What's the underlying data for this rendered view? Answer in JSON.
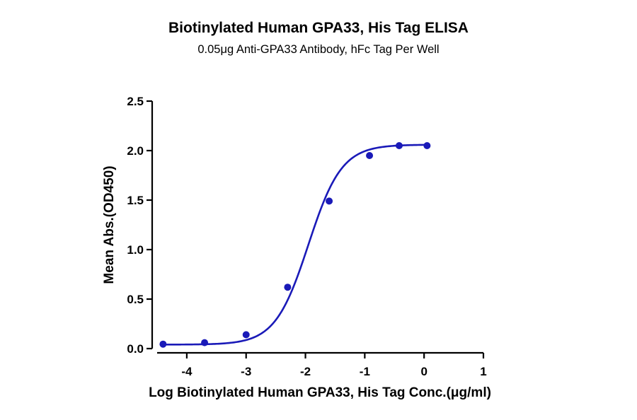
{
  "chart_data": {
    "type": "scatter",
    "title": "Biotinylated Human GPA33, His Tag ELISA",
    "subtitle": "0.05μg Anti-GPA33 Antibody, hFc Tag Per Well",
    "xlabel": "Log Biotinylated Human GPA33, His Tag Conc.(μg/ml)",
    "ylabel": "Mean Abs.(OD450)",
    "xlim": [
      -4.5,
      1
    ],
    "ylim": [
      0,
      2.5
    ],
    "x_ticks": [
      "-4",
      "-3",
      "-2",
      "-1",
      "0",
      "1"
    ],
    "y_ticks": [
      "0.0",
      "0.5",
      "1.0",
      "1.5",
      "2.0",
      "2.5"
    ],
    "series": [
      {
        "color": "#1a1ab8",
        "fit": "four-parameter logistic",
        "x": [
          -4.4,
          -3.7,
          -3.0,
          -2.3,
          -1.6,
          -0.92,
          -0.42,
          0.05
        ],
        "y": [
          0.045,
          0.06,
          0.14,
          0.62,
          1.49,
          1.95,
          2.05,
          2.05
        ]
      }
    ],
    "grid": false,
    "legend": "none"
  }
}
